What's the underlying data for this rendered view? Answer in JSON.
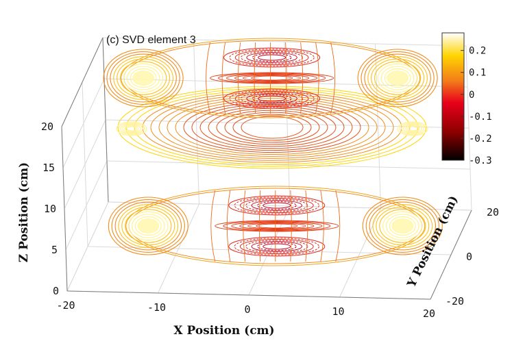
{
  "chart_data": {
    "type": "contour3d",
    "title": "(c) SVD element 3",
    "xlabel": "X Position (cm)",
    "ylabel": "Y Position (cm)",
    "zlabel": "Z Position (cm)",
    "xlim": [
      -20,
      20
    ],
    "ylim": [
      -20,
      20
    ],
    "zlim": [
      0,
      20
    ],
    "xticks": [
      "-20",
      "-10",
      "0",
      "10",
      "20"
    ],
    "yticks": [
      "-20",
      "0",
      "20"
    ],
    "zticks": [
      "0",
      "5",
      "10",
      "15",
      "20"
    ],
    "grid": true,
    "colorbar": {
      "ticks": [
        "0.2",
        "0.1",
        "0",
        "-0.1",
        "-0.2",
        "-0.3"
      ],
      "range": [
        -0.3,
        0.28
      ],
      "colormap": "hot",
      "colors": [
        "#000000",
        "#8b0000",
        "#e8001a",
        "#f27a1a",
        "#ffd400",
        "#ffffff"
      ]
    },
    "slices": [
      {
        "z": 3,
        "name": "bottom-slice",
        "pattern": "lobes",
        "warm_lobes_x": [
          -14,
          14
        ],
        "cool_center": true
      },
      {
        "z": 15,
        "name": "middle-slice",
        "pattern": "ellipse",
        "edge_hot_x": [
          -20,
          20
        ]
      },
      {
        "z": 21,
        "name": "top-slice",
        "pattern": "lobes",
        "warm_lobes_x": [
          -14,
          14
        ],
        "cool_center": true
      }
    ]
  }
}
